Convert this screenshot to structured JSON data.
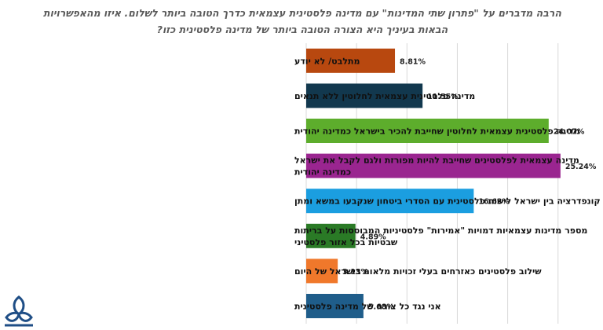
{
  "chart_data": {
    "type": "bar",
    "orientation": "horizontal",
    "title": [
      "הרבה מדברים על \"פתרון שתי המדינות\" עם מדינה פלסטינית עצמאית כדרך הטובה ביותר לשלום. איזו מהאפשרויות",
      "הבאות בעיניך היא הצורה הטובה ביותר של מדינה פלסטינית כזו?"
    ],
    "categories": [
      [
        "מתלבט/ לא יודע"
      ],
      [
        "מדינה פלסטינית עצמאית לחלוטין ללא תנאים"
      ],
      [
        "מדינה פלסטינית עצמאית לחלוטין שחייבת להכיר בישראל כמדינה יהודית"
      ],
      [
        "מדינה עצמאית לפלסטינים שחייבת להיות מפורזת ולגם לקבל את ישראל",
        "כמדינה יהודית"
      ],
      [
        "קונפדרציה בין ישראל לישות פלסטינית עם הסדרי ביטחון שנקבעו במשא ומתן"
      ],
      [
        "מספר מדינות עצמאיות דמויות \"אמירות\" פלסטיניות המבוססות על בריתות",
        "שבטיות בכל אזור פלסטיני"
      ],
      [
        "שילוב פלסטינים כאזרחים בעלי זכויות מלאות בישראל של היום"
      ],
      [
        "אני נגד כל צורה של מדינה פלסטינית"
      ]
    ],
    "values": [
      8.81,
      11.55,
      24.07,
      25.24,
      16.63,
      4.89,
      3.13,
      5.68
    ],
    "value_labels": [
      "8.81%",
      "11.55%",
      "24.07%",
      "25.24%",
      "16.63%",
      "4.89%",
      "3.13%",
      "5.68%"
    ],
    "colors": [
      "#b8480f",
      "#12384e",
      "#5dad2c",
      "#9a2590",
      "#1b9ee0",
      "#2a7a26",
      "#f0782b",
      "#1f5d8a"
    ],
    "xlim": [
      0,
      30
    ],
    "grid": true,
    "legend": "none"
  }
}
